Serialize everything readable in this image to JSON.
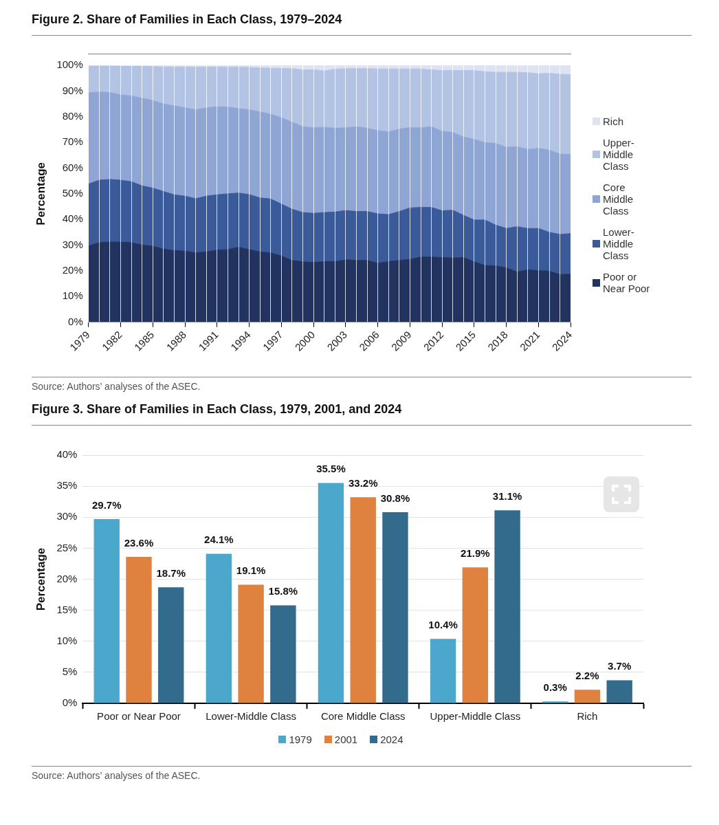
{
  "chart_data": [
    {
      "type": "area",
      "stacked": true,
      "title": "Figure 2. Share of Families in Each Class, 1979–2024",
      "ylabel": "Percentage",
      "annotations": [
        "Source: Authors’ analyses of the ASEC."
      ],
      "legend": "right",
      "grid": "x",
      "x": [
        1979,
        1980,
        1981,
        1982,
        1983,
        1984,
        1985,
        1986,
        1987,
        1988,
        1989,
        1990,
        1991,
        1992,
        1993,
        1994,
        1995,
        1996,
        1997,
        1998,
        1999,
        2000,
        2001,
        2002,
        2003,
        2004,
        2005,
        2006,
        2007,
        2008,
        2009,
        2010,
        2011,
        2012,
        2013,
        2014,
        2015,
        2016,
        2017,
        2018,
        2019,
        2020,
        2021,
        2022,
        2023,
        2024
      ],
      "xlim": [
        1979,
        2024
      ],
      "xticks": [
        1979,
        {
          "value": 1980,
          "label": null
        },
        {
          "value": 1981,
          "label": null
        },
        1982,
        {
          "value": 1983,
          "label": null
        },
        {
          "value": 1984,
          "label": null
        },
        1985,
        {
          "value": 1986,
          "label": null
        },
        {
          "value": 1987,
          "label": null
        },
        1988,
        {
          "value": 1989,
          "label": null
        },
        {
          "value": 1990,
          "label": null
        },
        1991,
        {
          "value": 1992,
          "label": null
        },
        {
          "value": 1993,
          "label": null
        },
        1994,
        {
          "value": 1995,
          "label": null
        },
        {
          "value": 1996,
          "label": null
        },
        1997,
        {
          "value": 1998,
          "label": null
        },
        {
          "value": 1999,
          "label": null
        },
        2000,
        {
          "value": 2001,
          "label": null
        },
        {
          "value": 2002,
          "label": null
        },
        2003,
        {
          "value": 2004,
          "label": null
        },
        {
          "value": 2005,
          "label": null
        },
        2006,
        {
          "value": 2007,
          "label": null
        },
        {
          "value": 2008,
          "label": null
        },
        2009,
        {
          "value": 2010,
          "label": null
        },
        {
          "value": 2011,
          "label": null
        },
        2012,
        {
          "value": 2013,
          "label": null
        },
        {
          "value": 2014,
          "label": null
        },
        2015,
        {
          "value": 2016,
          "label": null
        },
        {
          "value": 2017,
          "label": null
        },
        2018,
        {
          "value": 2019,
          "label": null
        },
        {
          "value": 2020,
          "label": null
        },
        2021,
        {
          "value": 2022,
          "label": null
        },
        {
          "value": 2023,
          "label": null
        },
        2024
      ],
      "ylim": [
        0,
        100
      ],
      "yticks": [
        {
          "value": 0,
          "label": "0%"
        },
        {
          "value": 10,
          "label": "10%"
        },
        {
          "value": 20,
          "label": "20%"
        },
        {
          "value": 30,
          "label": "30%"
        },
        {
          "value": 40,
          "label": "40%"
        },
        {
          "value": 50,
          "label": "50%"
        },
        {
          "value": 60,
          "label": "60%"
        },
        {
          "value": 70,
          "label": "70%"
        },
        {
          "value": 80,
          "label": "80%"
        },
        {
          "value": 90,
          "label": "90%"
        },
        {
          "value": 100,
          "label": "100%"
        }
      ],
      "series": [
        {
          "name": "Poor or Near Poor",
          "color": "#22335f",
          "values": [
            29.7,
            31.0,
            31.2,
            31.2,
            31.0,
            30.1,
            29.6,
            28.5,
            27.9,
            27.7,
            27.0,
            27.4,
            28.1,
            28.3,
            29.2,
            28.3,
            27.4,
            27.0,
            25.8,
            24.1,
            23.5,
            23.3,
            23.6,
            23.6,
            24.3,
            24.1,
            24.1,
            23.0,
            23.6,
            24.1,
            24.5,
            25.4,
            25.4,
            25.2,
            25.0,
            25.2,
            23.5,
            22.1,
            21.9,
            21.2,
            19.6,
            20.4,
            20.1,
            19.9,
            18.6,
            18.7
          ]
        },
        {
          "name": "Lower-Middle Class",
          "color": "#3a5a9a",
          "values": [
            24.1,
            24.3,
            24.4,
            24.1,
            23.7,
            23.0,
            22.6,
            22.4,
            21.7,
            21.4,
            21.1,
            21.7,
            21.5,
            21.7,
            21.1,
            21.4,
            21.0,
            21.0,
            20.2,
            19.9,
            19.2,
            19.1,
            19.1,
            19.3,
            19.2,
            19.0,
            19.0,
            19.2,
            18.3,
            19.0,
            20.0,
            19.3,
            19.3,
            18.2,
            18.6,
            16.4,
            16.3,
            17.7,
            15.9,
            15.3,
            17.6,
            16.1,
            16.4,
            15.1,
            15.6,
            15.8
          ]
        },
        {
          "name": "Core Middle Class",
          "color": "#8fa6d4",
          "values": [
            35.5,
            34.3,
            33.8,
            33.2,
            33.4,
            34.1,
            34.1,
            34.1,
            34.6,
            34.4,
            34.6,
            34.4,
            34.3,
            33.8,
            32.9,
            33.0,
            33.5,
            33.0,
            33.6,
            33.9,
            33.4,
            33.3,
            33.2,
            32.6,
            32.2,
            33.0,
            32.4,
            32.4,
            32.2,
            32.1,
            31.2,
            31.0,
            31.4,
            30.9,
            30.3,
            30.5,
            31.4,
            30.1,
            31.8,
            31.6,
            31.1,
            30.8,
            31.2,
            32.0,
            31.3,
            30.8
          ]
        },
        {
          "name": "Upper-Middle Class",
          "color": "#b3c3e3",
          "values": [
            10.4,
            10.1,
            10.3,
            11.1,
            11.5,
            12.4,
            13.2,
            14.4,
            15.1,
            15.8,
            16.6,
            15.8,
            15.4,
            15.5,
            16.1,
            16.5,
            17.1,
            17.9,
            19.2,
            20.8,
            22.1,
            22.6,
            21.9,
            23.0,
            23.0,
            22.6,
            23.2,
            24.0,
            24.5,
            23.4,
            22.9,
            22.9,
            22.1,
            23.7,
            24.1,
            25.9,
            26.8,
            27.6,
            27.7,
            29.2,
            29.0,
            29.8,
            29.0,
            29.9,
            31.0,
            31.1
          ]
        },
        {
          "name": "Rich",
          "color": "#dde3f2",
          "values": [
            0.3,
            0.3,
            0.3,
            0.4,
            0.4,
            0.4,
            0.5,
            0.6,
            0.7,
            0.7,
            0.7,
            0.7,
            0.7,
            0.7,
            0.7,
            0.8,
            1.0,
            1.1,
            1.2,
            1.3,
            1.8,
            1.7,
            2.2,
            1.5,
            1.3,
            1.3,
            1.3,
            1.4,
            1.4,
            1.4,
            1.4,
            1.4,
            1.8,
            2.0,
            2.0,
            2.0,
            2.0,
            2.5,
            2.7,
            2.7,
            2.7,
            2.9,
            3.3,
            3.1,
            3.5,
            3.7
          ]
        }
      ]
    },
    {
      "type": "bar",
      "title": "Figure 3. Share of Families in Each Class, 1979, 2001, and 2024",
      "ylabel": "Percentage",
      "annotations": [
        "Source: Authors’ analyses of the ASEC."
      ],
      "legend": "bottom",
      "grid": "y",
      "categories": [
        "Poor or Near Poor",
        "Lower-Middle Class",
        "Core Middle Class",
        "Upper-Middle Class",
        "Rich"
      ],
      "ylim": [
        0,
        40
      ],
      "yticks": [
        {
          "value": 0,
          "label": "0%"
        },
        {
          "value": 5,
          "label": "5%"
        },
        {
          "value": 10,
          "label": "10%"
        },
        {
          "value": 15,
          "label": "15%"
        },
        {
          "value": 20,
          "label": "20%"
        },
        {
          "value": 25,
          "label": "25%"
        },
        {
          "value": 30,
          "label": "30%"
        },
        {
          "value": 35,
          "label": "35%"
        },
        {
          "value": 40,
          "label": "40%"
        }
      ],
      "series": [
        {
          "name": "1979",
          "color": "#4ba8cc",
          "values": [
            29.7,
            24.1,
            35.5,
            10.4,
            0.3
          ],
          "value_labels": [
            "29.7%",
            "24.1%",
            "35.5%",
            "10.4%",
            "0.3%"
          ]
        },
        {
          "name": "2001",
          "color": "#e0823f",
          "values": [
            23.6,
            19.1,
            33.2,
            21.9,
            2.2
          ],
          "value_labels": [
            "23.6%",
            "19.1%",
            "33.2%",
            "21.9%",
            "2.2%"
          ]
        },
        {
          "name": "2024",
          "color": "#336b8c",
          "values": [
            18.7,
            15.8,
            30.8,
            31.1,
            3.7
          ],
          "value_labels": [
            "18.7%",
            "15.8%",
            "30.8%",
            "31.1%",
            "3.7%"
          ]
        }
      ]
    }
  ]
}
